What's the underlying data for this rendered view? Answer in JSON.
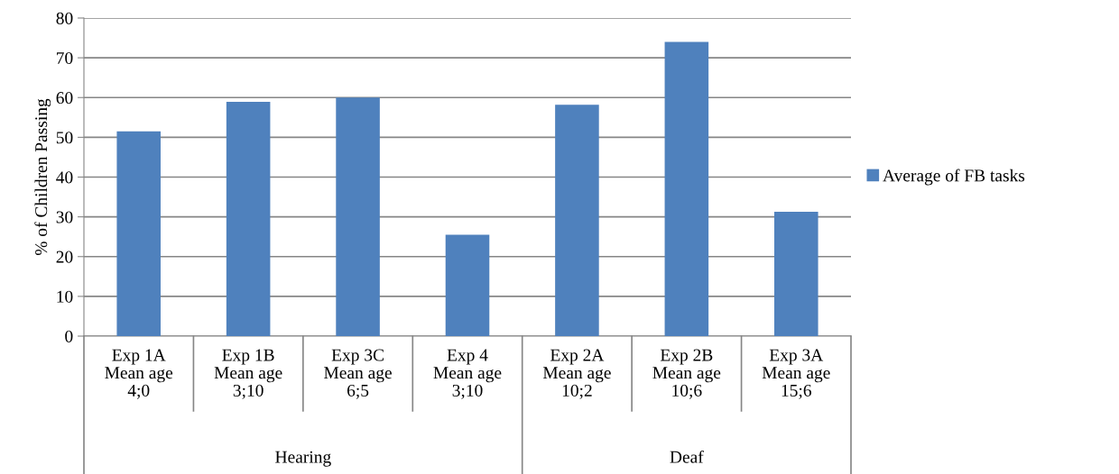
{
  "chart_data": {
    "type": "bar",
    "ylabel": "% of Children Passing",
    "categories": [
      "Exp 1A\nMean age\n4;0",
      "Exp 1B\nMean age\n3;10",
      "Exp 3C\nMean age\n6;5",
      "Exp 4\nMean age\n3;10",
      "Exp 2A\nMean age\n10;2",
      "Exp 2B\nMean age\n10;6",
      "Exp 3A\nMean age\n15;6"
    ],
    "series": [
      {
        "name": "Average of FB tasks",
        "color": "#4f81bd",
        "values": [
          51.5,
          58.9,
          60.0,
          25.5,
          58.2,
          74.0,
          31.3
        ]
      }
    ],
    "ylim": [
      0,
      80
    ],
    "yticks": [
      0,
      10,
      20,
      30,
      40,
      50,
      60,
      70,
      80
    ],
    "grid": "y",
    "legend": "right",
    "annotations": [
      "Hearing",
      "Deaf"
    ]
  }
}
